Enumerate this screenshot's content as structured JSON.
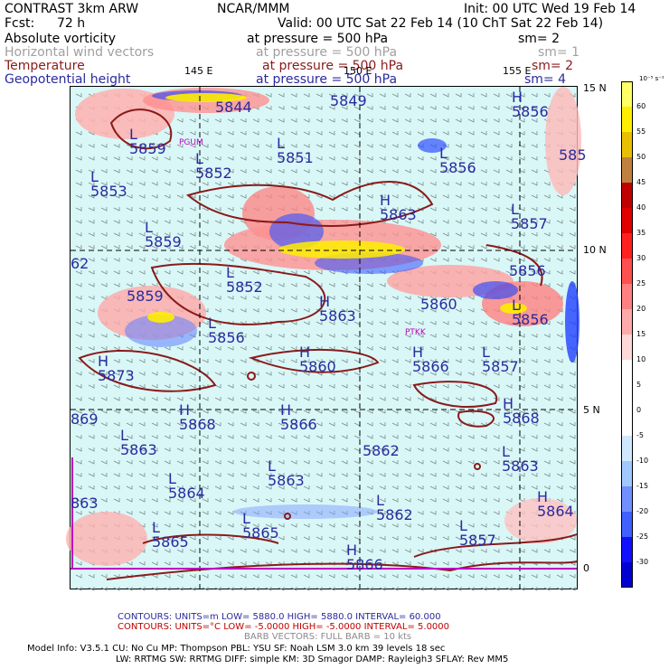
{
  "header": {
    "model": "CONTRAST  3km ARW",
    "org": "NCAR/MMM",
    "init": "Init: 00 UTC Wed 19 Feb 14",
    "fcst_label": "Fcst:",
    "fcst_value": "72 h",
    "valid": "Valid: 00 UTC Sat 22 Feb 14 (10 ChT Sat 22 Feb 14)"
  },
  "fields": [
    {
      "name": "Absolute vorticity",
      "level": "at pressure =  500 hPa",
      "sm": "sm= 2",
      "color": "#000000"
    },
    {
      "name": "Horizontal wind vectors",
      "level": "at pressure =  500 hPa",
      "sm": "sm= 1",
      "color": "#a0a0a0"
    },
    {
      "name": "Temperature",
      "level": "at pressure =  500 hPa",
      "sm": "sm= 2",
      "color": "#8b1a1a"
    },
    {
      "name": "Geopotential height",
      "level": "at pressure =  500 hPa",
      "sm": "sm= 4",
      "color": "#2a2a9e"
    }
  ],
  "map": {
    "lon_labels": [
      "145 E",
      "150 E",
      "155 E"
    ],
    "lat_labels": [
      "15 N",
      "10 N",
      "5 N",
      "0"
    ],
    "stations": [
      "PGUM",
      "PTKK"
    ],
    "height_labels": [
      {
        "t": "L",
        "v": "5859"
      },
      {
        "t": "L",
        "v": "5852"
      },
      {
        "t": "L",
        "v": "5853"
      },
      {
        "t": "L",
        "v": "5851"
      },
      {
        "t": "",
        "v": "5849"
      },
      {
        "t": "H",
        "v": "5856"
      },
      {
        "t": "L",
        "v": "5856"
      },
      {
        "t": "H",
        "v": "5863"
      },
      {
        "t": "L",
        "v": "5857"
      },
      {
        "t": "L",
        "v": "5859"
      },
      {
        "t": "",
        "v": "5856"
      },
      {
        "t": "L",
        "v": "5852"
      },
      {
        "t": "L",
        "v": "5859"
      },
      {
        "t": "L",
        "v": "5856"
      },
      {
        "t": "H",
        "v": "5863"
      },
      {
        "t": "",
        "v": "5860"
      },
      {
        "t": "L",
        "v": "5856"
      },
      {
        "t": "H",
        "v": "5873"
      },
      {
        "t": "H",
        "v": "5860"
      },
      {
        "t": "H",
        "v": "5866"
      },
      {
        "t": "L",
        "v": "5857"
      },
      {
        "t": "H",
        "v": "5868"
      },
      {
        "t": "H",
        "v": "5866"
      },
      {
        "t": "H",
        "v": "5868"
      },
      {
        "t": "L",
        "v": "5863"
      },
      {
        "t": "",
        "v": "5862"
      },
      {
        "t": "L",
        "v": "5863"
      },
      {
        "t": "L",
        "v": "5864"
      },
      {
        "t": "L",
        "v": "5863"
      },
      {
        "t": "L",
        "v": "5862"
      },
      {
        "t": "H",
        "v": "5864"
      },
      {
        "t": "L",
        "v": "5865"
      },
      {
        "t": "L",
        "v": "5865"
      },
      {
        "t": "L",
        "v": "5857"
      },
      {
        "t": "H",
        "v": "5866"
      },
      {
        "t": "",
        "v": "863"
      },
      {
        "t": "",
        "v": "869"
      },
      {
        "t": "",
        "v": "62"
      },
      {
        "t": "",
        "v": "585"
      },
      {
        "t": "",
        "v": "5844"
      }
    ]
  },
  "colorbar": {
    "unit": "10⁻⁵ s⁻¹",
    "levels": [
      "60",
      "55",
      "50",
      "45",
      "40",
      "35",
      "30",
      "25",
      "20",
      "15",
      "10",
      "5",
      "0",
      "-5",
      "-10",
      "-15",
      "-20",
      "-25",
      "-30"
    ],
    "colors": [
      "#ffff66",
      "#ffee00",
      "#e8c000",
      "#c08040",
      "#c00000",
      "#e00000",
      "#ff2020",
      "#ff5050",
      "#ff8080",
      "#ffaaaa",
      "#ffd8d8",
      "#ffffff",
      "#ffffff",
      "#ffffff",
      "#d0e8ff",
      "#a0c8ff",
      "#7090ff",
      "#4060ff",
      "#1010ff",
      "#0000d0"
    ]
  },
  "footer": {
    "contours1": "CONTOURS:  UNITS=m  LOW=  5880.0        HIGH=  5880.0       INTERVAL=  60.000",
    "contours2": "CONTOURS:  UNITS=°C  LOW= -5.0000        HIGH= -5.0000       INTERVAL=  5.0000",
    "barbs": "BARB VECTORS:  FULL BARB = 10 kts",
    "model_info1": "Model Info: V3.5.1    CU: No Cu     MP: Thompson     PBL: YSU       SF: Noah LSM     3.0 km   39 levels   18 sec",
    "model_info2": "LW: RRTMG    SW: RRTMG   DIFF: simple KM: 3D Smagor DAMP: Rayleigh3   SFLAY: Rev MM5"
  }
}
